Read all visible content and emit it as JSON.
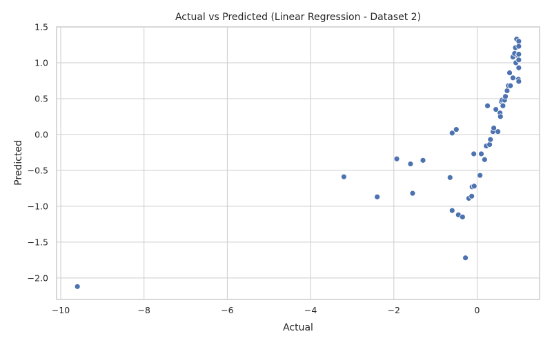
{
  "chart_data": {
    "type": "scatter",
    "title": "Actual vs Predicted (Linear Regression - Dataset 2)",
    "xlabel": "Actual",
    "ylabel": "Predicted",
    "xlim": [
      -10.1,
      1.5
    ],
    "ylim": [
      -2.3,
      1.5
    ],
    "xticks": [
      -10,
      -8,
      -6,
      -4,
      -2,
      0
    ],
    "yticks": [
      -2.0,
      -1.5,
      -1.0,
      -0.5,
      0.0,
      0.5,
      1.0,
      1.5
    ],
    "xtick_labels": [
      "−10",
      "−8",
      "−6",
      "−4",
      "−2",
      "0"
    ],
    "ytick_labels": [
      "−2.0",
      "−1.5",
      "−1.0",
      "−0.5",
      "0.0",
      "0.5",
      "1.0",
      "1.5"
    ],
    "grid": true,
    "point_color": "#4c72b0",
    "points": [
      {
        "x": -9.6,
        "y": -2.12
      },
      {
        "x": -3.2,
        "y": -0.59
      },
      {
        "x": -2.4,
        "y": -0.87
      },
      {
        "x": -1.93,
        "y": -0.34
      },
      {
        "x": -1.6,
        "y": -0.41
      },
      {
        "x": -1.55,
        "y": -0.82
      },
      {
        "x": -1.3,
        "y": -0.36
      },
      {
        "x": -0.65,
        "y": -0.6
      },
      {
        "x": -0.6,
        "y": 0.02
      },
      {
        "x": -0.5,
        "y": 0.07
      },
      {
        "x": -0.6,
        "y": -1.06
      },
      {
        "x": -0.45,
        "y": -1.12
      },
      {
        "x": -0.35,
        "y": -1.15
      },
      {
        "x": -0.28,
        "y": -1.72
      },
      {
        "x": -0.2,
        "y": -0.89
      },
      {
        "x": -0.13,
        "y": -0.86
      },
      {
        "x": -0.12,
        "y": -0.73
      },
      {
        "x": -0.07,
        "y": -0.72
      },
      {
        "x": -0.08,
        "y": -0.27
      },
      {
        "x": 0.07,
        "y": -0.57
      },
      {
        "x": 0.1,
        "y": -0.27
      },
      {
        "x": 0.18,
        "y": -0.35
      },
      {
        "x": 0.22,
        "y": -0.16
      },
      {
        "x": 0.25,
        "y": 0.4
      },
      {
        "x": 0.3,
        "y": -0.14
      },
      {
        "x": 0.32,
        "y": -0.07
      },
      {
        "x": 0.38,
        "y": 0.04
      },
      {
        "x": 0.4,
        "y": 0.09
      },
      {
        "x": 0.45,
        "y": 0.35
      },
      {
        "x": 0.5,
        "y": 0.04
      },
      {
        "x": 0.55,
        "y": 0.3
      },
      {
        "x": 0.56,
        "y": 0.25
      },
      {
        "x": 0.58,
        "y": 0.46
      },
      {
        "x": 0.6,
        "y": 0.48
      },
      {
        "x": 0.62,
        "y": 0.4
      },
      {
        "x": 0.66,
        "y": 0.48
      },
      {
        "x": 0.68,
        "y": 0.53
      },
      {
        "x": 0.72,
        "y": 0.61
      },
      {
        "x": 0.75,
        "y": 0.68
      },
      {
        "x": 0.78,
        "y": 0.86
      },
      {
        "x": 0.8,
        "y": 0.68
      },
      {
        "x": 0.86,
        "y": 0.79
      },
      {
        "x": 0.86,
        "y": 1.08
      },
      {
        "x": 0.9,
        "y": 1.13
      },
      {
        "x": 0.92,
        "y": 1.21
      },
      {
        "x": 0.93,
        "y": 1.0
      },
      {
        "x": 0.95,
        "y": 1.33
      },
      {
        "x": 0.98,
        "y": 1.1
      },
      {
        "x": 0.99,
        "y": 0.77
      },
      {
        "x": 1.0,
        "y": 1.3
      },
      {
        "x": 1.0,
        "y": 1.23
      },
      {
        "x": 1.0,
        "y": 1.12
      },
      {
        "x": 1.0,
        "y": 1.04
      },
      {
        "x": 1.0,
        "y": 0.93
      },
      {
        "x": 1.0,
        "y": 0.74
      }
    ]
  }
}
